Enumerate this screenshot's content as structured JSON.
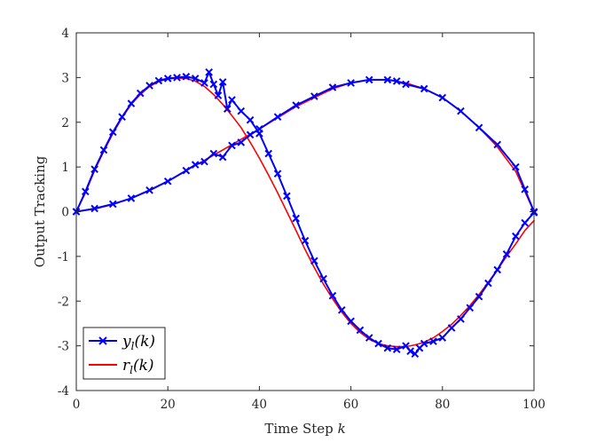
{
  "chart_data": {
    "type": "line",
    "title": "",
    "xlabel": "Time Step k",
    "ylabel": "Output Tracking",
    "xlim": [
      0,
      100
    ],
    "ylim": [
      -4,
      4
    ],
    "xticks": [
      "0",
      "20",
      "40",
      "60",
      "80",
      "100"
    ],
    "yticks": [
      "4",
      "3",
      "2",
      "1",
      "0",
      "-1",
      "-2",
      "-3",
      "-4"
    ],
    "legend_position": "bottom-left",
    "series": [
      {
        "name": "y_l(k)",
        "legend_label": "yl(k)",
        "color": "#0000ff",
        "marker": "x",
        "curves": [
          {
            "x": [
              0,
              2,
              4,
              6,
              8,
              10,
              12,
              14,
              16,
              18,
              20,
              22,
              24,
              26,
              28,
              29,
              30,
              31,
              32,
              33,
              34,
              36,
              38,
              40,
              42,
              44,
              46,
              48,
              50,
              52,
              54,
              56,
              58,
              60,
              62,
              64,
              66,
              68,
              70,
              72,
              73,
              74,
              75,
              76,
              78,
              80,
              82,
              84,
              86,
              88,
              90,
              92,
              94,
              96,
              98,
              100
            ],
            "y": [
              0,
              0.45,
              0.95,
              1.38,
              1.78,
              2.12,
              2.42,
              2.65,
              2.82,
              2.93,
              2.98,
              3.0,
              3.02,
              2.98,
              2.88,
              3.12,
              2.85,
              2.6,
              2.9,
              2.3,
              2.5,
              2.25,
              2.05,
              1.75,
              1.3,
              0.85,
              0.35,
              -0.15,
              -0.65,
              -1.1,
              -1.5,
              -1.88,
              -2.2,
              -2.45,
              -2.65,
              -2.82,
              -2.95,
              -3.05,
              -3.08,
              -3.0,
              -3.12,
              -3.18,
              -3.05,
              -2.95,
              -2.9,
              -2.82,
              -2.6,
              -2.4,
              -2.15,
              -1.9,
              -1.6,
              -1.3,
              -0.95,
              -0.55,
              -0.25,
              -0.02
            ]
          },
          {
            "x": [
              0,
              4,
              8,
              12,
              16,
              20,
              24,
              26,
              28,
              30,
              32,
              34,
              36,
              38,
              40,
              44,
              48,
              52,
              56,
              60,
              64,
              68,
              70,
              72,
              76,
              80,
              84,
              88,
              92,
              96,
              98,
              100
            ],
            "y": [
              0,
              0.07,
              0.17,
              0.3,
              0.48,
              0.68,
              0.92,
              1.05,
              1.12,
              1.3,
              1.22,
              1.48,
              1.55,
              1.72,
              1.85,
              2.12,
              2.38,
              2.58,
              2.78,
              2.88,
              2.95,
              2.95,
              2.92,
              2.85,
              2.75,
              2.55,
              2.25,
              1.88,
              1.5,
              1.0,
              0.5,
              0.0
            ]
          }
        ]
      },
      {
        "name": "r_l(k)",
        "legend_label": "rl(k)",
        "color": "#ff0000",
        "marker": "none",
        "curves": [
          {
            "x": [
              0,
              2,
              4,
              6,
              8,
              10,
              12,
              14,
              16,
              18,
              20,
              22,
              24,
              26,
              28,
              30,
              32,
              34,
              36,
              38,
              40,
              42,
              44,
              46,
              48,
              50,
              52,
              54,
              56,
              58,
              60,
              62,
              64,
              66,
              68,
              70,
              72,
              74,
              76,
              78,
              80,
              82,
              84,
              86,
              88,
              90,
              92,
              94,
              96,
              98,
              100
            ],
            "y": [
              0,
              0.42,
              0.92,
              1.35,
              1.75,
              2.1,
              2.4,
              2.62,
              2.8,
              2.91,
              2.97,
              2.99,
              2.98,
              2.92,
              2.8,
              2.62,
              2.4,
              2.15,
              1.88,
              1.55,
              1.2,
              0.82,
              0.42,
              0.0,
              -0.42,
              -0.85,
              -1.25,
              -1.62,
              -1.95,
              -2.25,
              -2.5,
              -2.7,
              -2.85,
              -2.95,
              -3.0,
              -3.02,
              -3.02,
              -2.98,
              -2.92,
              -2.82,
              -2.68,
              -2.52,
              -2.32,
              -2.1,
              -1.85,
              -1.58,
              -1.3,
              -1.0,
              -0.72,
              -0.42,
              -0.2
            ]
          },
          {
            "x": [
              0,
              4,
              8,
              12,
              16,
              20,
              24,
              28,
              32,
              36,
              40,
              44,
              48,
              52,
              56,
              60,
              64,
              68,
              72,
              76,
              80,
              84,
              88,
              92,
              96,
              100
            ],
            "y": [
              0,
              0.06,
              0.16,
              0.3,
              0.47,
              0.68,
              0.92,
              1.15,
              1.38,
              1.62,
              1.85,
              2.1,
              2.35,
              2.55,
              2.75,
              2.88,
              2.95,
              2.95,
              2.88,
              2.75,
              2.55,
              2.25,
              1.88,
              1.45,
              0.9,
              0.0
            ]
          }
        ]
      }
    ]
  }
}
